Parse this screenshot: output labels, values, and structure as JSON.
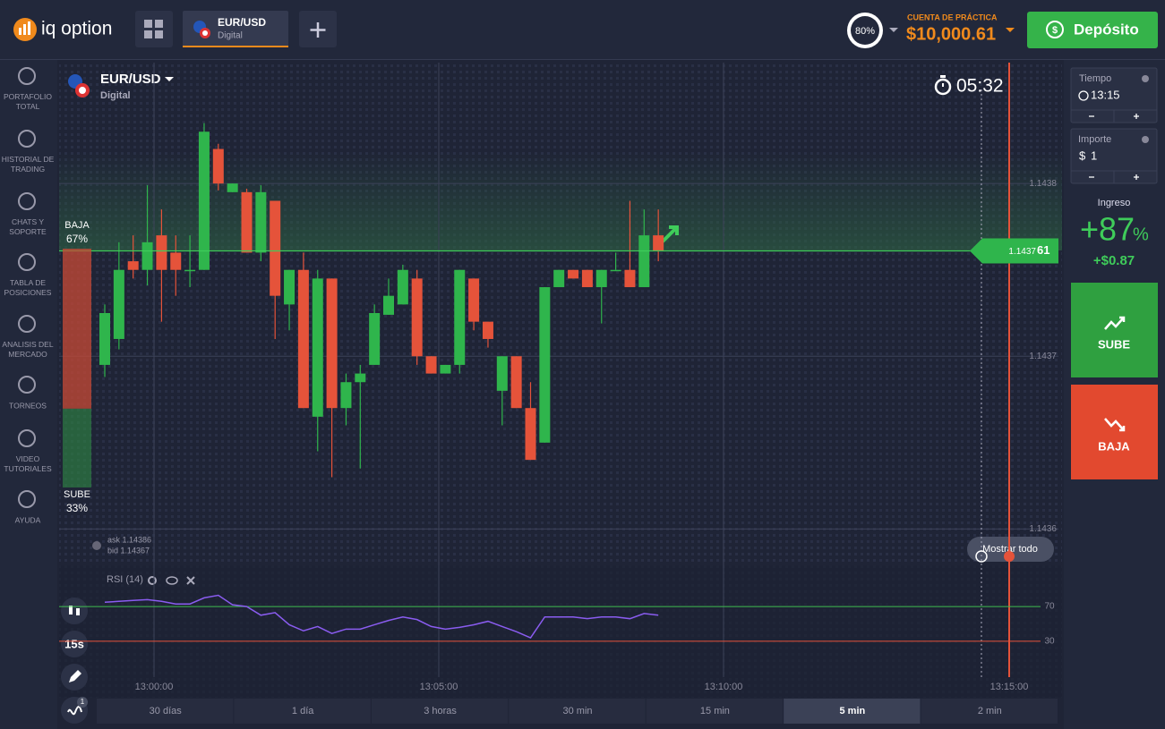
{
  "header": {
    "logo": "iq option",
    "tab_pair": "EUR/USD",
    "tab_type": "Digital",
    "timer": "80%",
    "account_label": "CUENTA DE PRÁCTICA",
    "balance": "$10,000.61",
    "deposit": "Depósito"
  },
  "sidebar": [
    "PORTAFOLIO TOTAL",
    "HISTORIAL DE TRADING",
    "CHATS Y SOPORTE",
    "TABLA DE POSICIONES",
    "ANALISIS DEL MERCADO",
    "TORNEOS",
    "VIDEO TUTORIALES",
    "AYUDA"
  ],
  "asset": {
    "pair": "EUR/USD",
    "type": "Digital",
    "countdown": "05:32"
  },
  "sentiment": {
    "down_label": "BAJA",
    "down": 67,
    "down_value_label": "67%",
    "up_label": "SUBE",
    "up": 33,
    "up_value_label": "33%"
  },
  "quotes": {
    "ask": "ask 1.14386",
    "bid": "bid 1.14367"
  },
  "show_all": "Mostrar todo",
  "tools": {
    "interval": "15s",
    "badge": "1"
  },
  "time_ranges": {
    "items": [
      "30 días",
      "1 día",
      "3 horas",
      "30 min",
      "15 min",
      "5 min",
      "2 min"
    ],
    "active": "5 min"
  },
  "trade_panel": {
    "time_label": "Tiempo",
    "time": "13:15",
    "amount_label": "Importe",
    "currency": "$",
    "amount": "1",
    "income_label": "Ingreso",
    "income_percent": "+87",
    "percent_sign": "%",
    "income": "+$0.87",
    "up": "SUBE",
    "down": "BAJA"
  },
  "chart_data": [
    {
      "type": "candlestick",
      "up_color": "#2fb54c",
      "down_color": "#e5533a",
      "open": [
        1.143695,
        1.14371,
        1.143755,
        1.14375,
        1.14377,
        1.14376,
        1.14375,
        1.14375,
        1.14382,
        1.143795,
        1.143795,
        1.14376,
        1.14379,
        1.14373,
        1.14375,
        1.143665,
        1.143745,
        1.14367,
        1.143685,
        1.143695,
        1.143724,
        1.14373,
        1.143745,
        1.1437,
        1.14369,
        1.143695,
        1.143745,
        1.14372,
        1.14368,
        1.1437,
        1.14367,
        1.14365,
        1.14374,
        1.14375,
        1.14375,
        1.14374,
        1.14375,
        1.14375,
        1.14374,
        1.14377
      ],
      "high": [
        1.14373,
        1.143766,
        1.14377,
        1.143799,
        1.143785,
        1.14377,
        1.14377,
        1.143835,
        1.143823,
        1.1438,
        1.143797,
        1.143799,
        1.14379,
        1.14375,
        1.14376,
        1.14375,
        1.143745,
        1.14369,
        1.143695,
        1.14373,
        1.143745,
        1.143753,
        1.14375,
        1.1437,
        1.143695,
        1.14375,
        1.143745,
        1.14372,
        1.1437,
        1.1437,
        1.143685,
        1.14374,
        1.14375,
        1.14375,
        1.14375,
        1.14375,
        1.14376,
        1.14379,
        1.143785,
        1.143785
      ],
      "low": [
        1.143688,
        1.143704,
        1.143745,
        1.143741,
        1.14372,
        1.143735,
        1.14374,
        1.14375,
        1.143796,
        1.143795,
        1.14376,
        1.143755,
        1.14371,
        1.143715,
        1.14367,
        1.143645,
        1.14363,
        1.14366,
        1.143635,
        1.143695,
        1.143724,
        1.14373,
        1.143695,
        1.14369,
        1.14369,
        1.14369,
        1.143715,
        1.143705,
        1.14366,
        1.14367,
        1.14364,
        1.14365,
        1.14374,
        1.143745,
        1.14374,
        1.143719,
        1.14375,
        1.14374,
        1.14374,
        1.143755
      ],
      "close": [
        1.143725,
        1.14375,
        1.14375,
        1.143766,
        1.14375,
        1.14375,
        1.14375,
        1.14383,
        1.1438,
        1.1438,
        1.14376,
        1.143795,
        1.143735,
        1.14375,
        1.14367,
        1.143745,
        1.14367,
        1.143685,
        1.14369,
        1.143725,
        1.143735,
        1.14375,
        1.1437,
        1.14369,
        1.143695,
        1.14375,
        1.14372,
        1.14371,
        1.1437,
        1.14367,
        1.14364,
        1.14374,
        1.14375,
        1.143745,
        1.14374,
        1.14375,
        1.14375,
        1.14374,
        1.14377,
        1.143761
      ],
      "ylim": [
        1.14358,
        1.14387
      ],
      "yticks": [
        1.1438,
        1.1437,
        1.1436
      ],
      "time_labels": [
        "13:00:00",
        "13:05:00",
        "13:10:00",
        "13:15:00"
      ],
      "current_price": 1.143761,
      "current_price_label": {
        "main": "1.1437",
        "pips": "61"
      }
    },
    {
      "type": "line",
      "name": "RSI (14)",
      "color": "#8a5cf0",
      "values": [
        75,
        76,
        77,
        78,
        76,
        73,
        73,
        80,
        83,
        72,
        70,
        60,
        63,
        49,
        42,
        47,
        39,
        44,
        44,
        49,
        54,
        58,
        55,
        47,
        44,
        46,
        49,
        53,
        47,
        41,
        34,
        58,
        58,
        58,
        56,
        58,
        58,
        56,
        62,
        60
      ],
      "ylim": [
        0,
        100
      ],
      "yticks": [
        30,
        70
      ],
      "level_colors": [
        "#e5533a",
        "#3fbf4f"
      ]
    }
  ]
}
